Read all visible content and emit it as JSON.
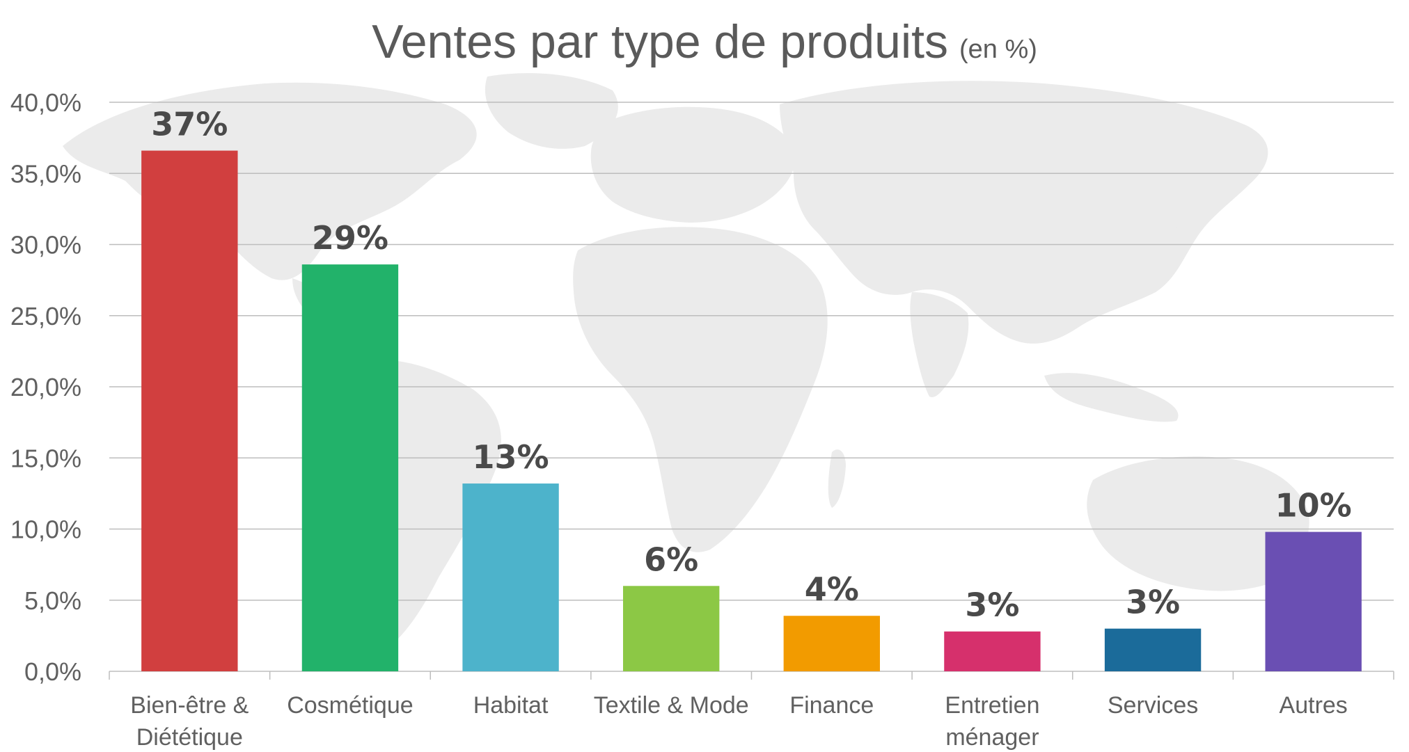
{
  "chart_data": {
    "type": "bar",
    "title": "Ventes par type de produits",
    "subtitle": "(en %)",
    "categories": [
      [
        "Bien-être &",
        "Diététique"
      ],
      [
        "Cosmétique"
      ],
      [
        "Habitat"
      ],
      [
        "Textile & Mode"
      ],
      [
        "Finance"
      ],
      [
        "Entretien",
        "ménager"
      ],
      [
        "Services"
      ],
      [
        "Autres"
      ]
    ],
    "values": [
      36.6,
      28.6,
      13.2,
      6.0,
      3.9,
      2.8,
      3.0,
      9.8
    ],
    "data_labels": [
      "37%",
      "29%",
      "13%",
      "6%",
      "4%",
      "3%",
      "3%",
      "10%"
    ],
    "colors": [
      "#d13f3f",
      "#22b26a",
      "#4db3cb",
      "#8cc845",
      "#f29b00",
      "#d6306c",
      "#1b6b9a",
      "#6a4fb3"
    ],
    "ylim": [
      0,
      40
    ],
    "yticks": [
      0,
      5,
      10,
      15,
      20,
      25,
      30,
      35,
      40
    ],
    "ytick_labels": [
      "0,0%",
      "5,0%",
      "10,0%",
      "15,0%",
      "20,0%",
      "25,0%",
      "30,0%",
      "35,0%",
      "40,0%"
    ],
    "grid": true,
    "legend": "none",
    "background": "world-map"
  }
}
